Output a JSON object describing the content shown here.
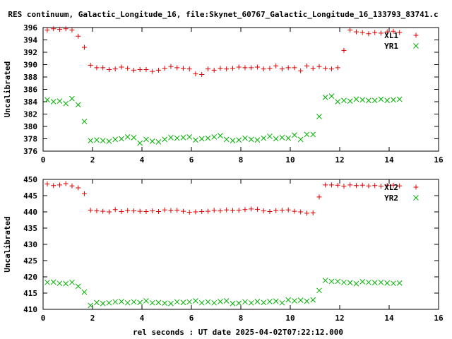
{
  "title": "RES continuum, Galactic_Longitude_16, file:Skynet_60767_Galactic_Longitude_16_133793_83741.c",
  "xlabel": "rel seconds : UT date 2025-04-02T07:22:12.000",
  "colors": {
    "red": "#e00000",
    "green": "#00b000"
  },
  "chart_data": [
    {
      "type": "scatter",
      "ylabel": "Uncalibrated",
      "xlim": [
        0,
        16
      ],
      "ylim": [
        376,
        396
      ],
      "xticks": [
        0,
        2,
        4,
        6,
        8,
        10,
        12,
        14,
        16
      ],
      "yticks": [
        376,
        378,
        380,
        382,
        384,
        386,
        388,
        390,
        392,
        394,
        396
      ],
      "legend_position": "top-right",
      "grid": false,
      "series": [
        {
          "name": "XL1",
          "marker": "plus",
          "color": "red",
          "x": [
            0.17,
            0.42,
            0.67,
            0.92,
            1.17,
            1.42,
            1.67,
            1.92,
            2.17,
            2.42,
            2.67,
            2.92,
            3.17,
            3.42,
            3.67,
            3.92,
            4.17,
            4.42,
            4.67,
            4.92,
            5.17,
            5.42,
            5.67,
            5.92,
            6.17,
            6.42,
            6.67,
            6.92,
            7.17,
            7.42,
            7.67,
            7.92,
            8.17,
            8.42,
            8.67,
            8.92,
            9.17,
            9.42,
            9.67,
            9.92,
            10.17,
            10.42,
            10.67,
            10.92,
            11.17,
            11.42,
            11.67,
            11.92,
            12.17,
            12.42,
            12.67,
            12.92,
            13.17,
            13.42,
            13.67,
            13.92,
            14.17,
            14.42
          ],
          "y": [
            395.6,
            395.8,
            395.7,
            395.8,
            395.6,
            394.6,
            392.8,
            389.9,
            389.5,
            389.5,
            389.2,
            389.3,
            389.6,
            389.4,
            389.1,
            389.2,
            389.2,
            388.9,
            389.1,
            389.4,
            389.7,
            389.5,
            389.4,
            389.3,
            388.5,
            388.4,
            389.3,
            389.1,
            389.4,
            389.3,
            389.4,
            389.6,
            389.5,
            389.5,
            389.6,
            389.3,
            389.4,
            389.8,
            389.3,
            389.5,
            389.5,
            389.0,
            389.8,
            389.4,
            389.7,
            389.4,
            389.3,
            389.5,
            392.3,
            395.6,
            395.3,
            395.2,
            395.0,
            395.2,
            395.1,
            395.3,
            395.4,
            395.2
          ]
        },
        {
          "name": "YR1",
          "marker": "cross",
          "color": "green",
          "x": [
            0.17,
            0.42,
            0.67,
            0.92,
            1.17,
            1.42,
            1.67,
            1.92,
            2.17,
            2.42,
            2.67,
            2.92,
            3.17,
            3.42,
            3.67,
            3.92,
            4.17,
            4.42,
            4.67,
            4.92,
            5.17,
            5.42,
            5.67,
            5.92,
            6.17,
            6.42,
            6.67,
            6.92,
            7.17,
            7.42,
            7.67,
            7.92,
            8.17,
            8.42,
            8.67,
            8.92,
            9.17,
            9.42,
            9.67,
            9.92,
            10.17,
            10.42,
            10.67,
            10.92,
            11.17,
            11.42,
            11.67,
            11.92,
            12.17,
            12.42,
            12.67,
            12.92,
            13.17,
            13.42,
            13.67,
            13.92,
            14.17,
            14.42
          ],
          "y": [
            384.3,
            384.0,
            384.1,
            383.7,
            384.5,
            383.5,
            380.8,
            377.7,
            377.8,
            377.7,
            377.6,
            377.9,
            378.0,
            378.3,
            378.2,
            377.3,
            377.9,
            377.6,
            377.5,
            377.9,
            378.2,
            378.1,
            378.2,
            378.3,
            377.8,
            378.0,
            378.1,
            378.3,
            378.5,
            377.9,
            377.7,
            377.8,
            378.1,
            377.9,
            377.8,
            378.1,
            378.4,
            378.0,
            378.2,
            378.1,
            378.6,
            377.9,
            378.7,
            378.7,
            381.6,
            384.7,
            384.9,
            384.0,
            384.2,
            384.1,
            384.4,
            384.3,
            384.2,
            384.2,
            384.4,
            384.2,
            384.3,
            384.4
          ]
        }
      ]
    },
    {
      "type": "scatter",
      "ylabel": "Uncalibrated",
      "xlim": [
        0,
        16
      ],
      "ylim": [
        410,
        450
      ],
      "xticks": [
        0,
        2,
        4,
        6,
        8,
        10,
        12,
        14,
        16
      ],
      "yticks": [
        410,
        415,
        420,
        425,
        430,
        435,
        440,
        445,
        450
      ],
      "legend_position": "top-right",
      "grid": false,
      "series": [
        {
          "name": "XL2",
          "marker": "plus",
          "color": "red",
          "x": [
            0.17,
            0.42,
            0.67,
            0.92,
            1.17,
            1.42,
            1.67,
            1.92,
            2.17,
            2.42,
            2.67,
            2.92,
            3.17,
            3.42,
            3.67,
            3.92,
            4.17,
            4.42,
            4.67,
            4.92,
            5.17,
            5.42,
            5.67,
            5.92,
            6.17,
            6.42,
            6.67,
            6.92,
            7.17,
            7.42,
            7.67,
            7.92,
            8.17,
            8.42,
            8.67,
            8.92,
            9.17,
            9.42,
            9.67,
            9.92,
            10.17,
            10.42,
            10.67,
            10.92,
            11.17,
            11.42,
            11.67,
            11.92,
            12.17,
            12.42,
            12.67,
            12.92,
            13.17,
            13.42,
            13.67,
            13.92,
            14.17,
            14.42
          ],
          "y": [
            448.6,
            448.1,
            448.3,
            448.7,
            448.0,
            447.4,
            445.6,
            440.5,
            440.3,
            440.2,
            440.0,
            440.7,
            440.1,
            440.4,
            440.3,
            440.2,
            440.1,
            440.3,
            440.1,
            440.6,
            440.4,
            440.5,
            440.2,
            439.9,
            440.0,
            440.1,
            440.2,
            440.5,
            440.3,
            440.6,
            440.4,
            440.5,
            440.7,
            440.9,
            440.8,
            440.3,
            440.1,
            440.4,
            440.5,
            440.6,
            440.2,
            440.0,
            439.6,
            439.7,
            444.6,
            448.3,
            448.3,
            448.2,
            447.9,
            448.3,
            448.1,
            448.2,
            448.0,
            448.1,
            447.9,
            448.1,
            448.2,
            448.0
          ]
        },
        {
          "name": "YR2",
          "marker": "cross",
          "color": "green",
          "x": [
            0.17,
            0.42,
            0.67,
            0.92,
            1.17,
            1.42,
            1.67,
            1.92,
            2.17,
            2.42,
            2.67,
            2.92,
            3.17,
            3.42,
            3.67,
            3.92,
            4.17,
            4.42,
            4.67,
            4.92,
            5.17,
            5.42,
            5.67,
            5.92,
            6.17,
            6.42,
            6.67,
            6.92,
            7.17,
            7.42,
            7.67,
            7.92,
            8.17,
            8.42,
            8.67,
            8.92,
            9.17,
            9.42,
            9.67,
            9.92,
            10.17,
            10.42,
            10.67,
            10.92,
            11.17,
            11.42,
            11.67,
            11.92,
            12.17,
            12.42,
            12.67,
            12.92,
            13.17,
            13.42,
            13.67,
            13.92,
            14.17,
            14.42
          ],
          "y": [
            418.3,
            418.4,
            418.0,
            417.9,
            418.3,
            417.1,
            415.3,
            411.2,
            412.1,
            411.8,
            412.0,
            412.3,
            412.4,
            412.0,
            412.3,
            412.1,
            412.6,
            412.0,
            412.1,
            411.9,
            411.8,
            412.3,
            412.1,
            412.3,
            412.6,
            412.0,
            412.3,
            412.0,
            412.4,
            412.6,
            411.8,
            411.9,
            412.3,
            412.0,
            412.4,
            412.1,
            412.4,
            412.5,
            412.0,
            412.9,
            412.6,
            412.8,
            412.5,
            412.9,
            415.8,
            418.9,
            418.6,
            418.6,
            418.3,
            418.2,
            417.9,
            418.5,
            418.3,
            418.2,
            418.3,
            418.1,
            418.0,
            418.1
          ]
        }
      ]
    }
  ]
}
